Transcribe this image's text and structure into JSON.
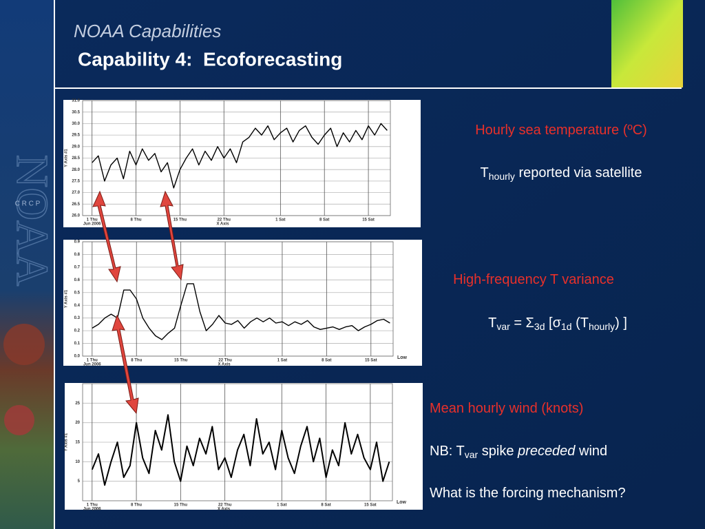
{
  "header": {
    "kicker": "NOAA Capabilities",
    "title": "Capability 4:  Ecoforecasting"
  },
  "sidebar": {
    "logo": "NOAA",
    "program": "C R C P"
  },
  "chart_data": [
    {
      "type": "line",
      "y_label": "Y Axis #1",
      "x_label": "X Axis",
      "x_sublabel": "Jun 2006",
      "xlim": [
        -1.5,
        47.5
      ],
      "xticks": [
        {
          "value": 0,
          "label": "1 Thu"
        },
        {
          "value": 7,
          "label": "8 Thu"
        },
        {
          "value": 14,
          "label": "15 Thu"
        },
        {
          "value": 21,
          "label": "22 Thu"
        },
        {
          "value": 30,
          "label": "1 Sat"
        },
        {
          "value": 37,
          "label": "8 Sat"
        },
        {
          "value": 44,
          "label": "15 Sat"
        }
      ],
      "ylim": [
        26,
        31
      ],
      "yticks": [
        {
          "value": 26,
          "label": "26.0"
        },
        {
          "value": 26.5,
          "label": "26.5"
        },
        {
          "value": 27,
          "label": "27.0"
        },
        {
          "value": 27.5,
          "label": "27.5"
        },
        {
          "value": 28,
          "label": "28.0"
        },
        {
          "value": 28.5,
          "label": "28.5"
        },
        {
          "value": 29,
          "label": "29.0"
        },
        {
          "value": 29.5,
          "label": "29.5"
        },
        {
          "value": 30,
          "label": "30.0"
        },
        {
          "value": 30.5,
          "label": "30.5"
        },
        {
          "value": 31,
          "label": "31.0"
        }
      ],
      "grid": true,
      "series": [
        {
          "color": "#000000",
          "x": [
            0,
            1,
            2,
            3,
            4,
            5,
            6,
            7,
            8,
            9,
            10,
            11,
            12,
            13,
            14,
            15,
            16,
            17,
            18,
            19,
            20,
            21,
            22,
            23,
            24,
            25,
            26,
            27,
            28,
            29,
            30,
            31,
            32,
            33,
            34,
            35,
            36,
            37,
            38,
            39,
            40,
            41,
            42,
            43,
            44,
            45,
            46,
            47
          ],
          "values": [
            28.3,
            28.6,
            27.5,
            28.2,
            28.5,
            27.6,
            28.8,
            28.2,
            28.9,
            28.4,
            28.7,
            27.9,
            28.3,
            27.2,
            28.0,
            28.5,
            28.9,
            28.2,
            28.8,
            28.4,
            29.0,
            28.5,
            28.9,
            28.3,
            29.2,
            29.4,
            29.8,
            29.5,
            29.9,
            29.3,
            29.6,
            29.8,
            29.2,
            29.7,
            29.9,
            29.4,
            29.1,
            29.5,
            29.8,
            29.0,
            29.6,
            29.2,
            29.7,
            29.3,
            29.9,
            29.5,
            30.0,
            29.7
          ]
        }
      ]
    },
    {
      "type": "line",
      "y_label": "Y Axis #1",
      "x_label": "X Axis",
      "x_sublabel": "Jun 2006",
      "corner_label": "Low",
      "xlim": [
        -1.5,
        47.5
      ],
      "xticks": [
        {
          "value": 0,
          "label": "1 Thu"
        },
        {
          "value": 7,
          "label": "8 Thu"
        },
        {
          "value": 14,
          "label": "15 Thu"
        },
        {
          "value": 21,
          "label": "22 Thu"
        },
        {
          "value": 30,
          "label": "1 Sat"
        },
        {
          "value": 37,
          "label": "8 Sat"
        },
        {
          "value": 44,
          "label": "15 Sat"
        }
      ],
      "ylim": [
        0,
        0.9
      ],
      "yticks": [
        {
          "value": 0,
          "label": "0.0"
        },
        0.1,
        0.2,
        0.3,
        0.4,
        0.5,
        0.6,
        0.7,
        0.8,
        0.9
      ],
      "grid": true,
      "series": [
        {
          "color": "#000000",
          "x": [
            0,
            1,
            2,
            3,
            4,
            5,
            6,
            7,
            8,
            9,
            10,
            11,
            12,
            13,
            14,
            15,
            16,
            17,
            18,
            19,
            20,
            21,
            22,
            23,
            24,
            25,
            26,
            27,
            28,
            29,
            30,
            31,
            32,
            33,
            34,
            35,
            36,
            37,
            38,
            39,
            40,
            41,
            42,
            43,
            44,
            45,
            46,
            47
          ],
          "values": [
            0.22,
            0.25,
            0.3,
            0.33,
            0.3,
            0.52,
            0.52,
            0.45,
            0.3,
            0.22,
            0.16,
            0.13,
            0.18,
            0.22,
            0.4,
            0.57,
            0.57,
            0.35,
            0.2,
            0.25,
            0.32,
            0.26,
            0.25,
            0.28,
            0.22,
            0.27,
            0.3,
            0.27,
            0.3,
            0.26,
            0.27,
            0.24,
            0.27,
            0.25,
            0.28,
            0.23,
            0.21,
            0.22,
            0.23,
            0.21,
            0.23,
            0.24,
            0.2,
            0.23,
            0.25,
            0.28,
            0.29,
            0.26
          ]
        }
      ]
    },
    {
      "type": "line",
      "y_label": "Y Axis #1",
      "x_label": "X Axis",
      "x_sublabel": "Jun 2006",
      "corner_label": "Low",
      "xlim": [
        -1.5,
        47.5
      ],
      "xticks": [
        {
          "value": 0,
          "label": "1 Thu"
        },
        {
          "value": 7,
          "label": "8 Thu"
        },
        {
          "value": 14,
          "label": "15 Thu"
        },
        {
          "value": 21,
          "label": "22 Thu"
        },
        {
          "value": 30,
          "label": "1 Sat"
        },
        {
          "value": 37,
          "label": "8 Sat"
        },
        {
          "value": 44,
          "label": "15 Sat"
        }
      ],
      "ylim": [
        0,
        30
      ],
      "yticks": [
        5,
        10,
        15,
        20,
        25
      ],
      "grid": true,
      "series": [
        {
          "color": "#000000",
          "x": [
            0,
            1,
            2,
            3,
            4,
            5,
            6,
            7,
            8,
            9,
            10,
            11,
            12,
            13,
            14,
            15,
            16,
            17,
            18,
            19,
            20,
            21,
            22,
            23,
            24,
            25,
            26,
            27,
            28,
            29,
            30,
            31,
            32,
            33,
            34,
            35,
            36,
            37,
            38,
            39,
            40,
            41,
            42,
            43,
            44,
            45,
            46,
            47
          ],
          "values": [
            8,
            12,
            4,
            10,
            15,
            6,
            9,
            20,
            11,
            7,
            18,
            13,
            22,
            10,
            5,
            14,
            9,
            16,
            12,
            19,
            8,
            11,
            6,
            13,
            17,
            9,
            21,
            12,
            15,
            8,
            18,
            11,
            7,
            14,
            19,
            10,
            16,
            6,
            13,
            9,
            20,
            12,
            17,
            11,
            8,
            15,
            5,
            10
          ]
        }
      ]
    }
  ],
  "notes": [
    {
      "color": "#e8302a",
      "segments": [
        {
          "text": "Hourly sea temperature (ºC)"
        }
      ]
    },
    {
      "color": "#ffffff",
      "segments": [
        {
          "text": "T"
        },
        {
          "text": "hourly",
          "sub": true
        },
        {
          "text": " reported via satellite"
        }
      ]
    },
    {
      "color": "#e8302a",
      "segments": [
        {
          "text": "High-frequency T variance"
        }
      ]
    },
    {
      "color": "#ffffff",
      "segments": [
        {
          "text": "T"
        },
        {
          "text": "var",
          "sub": true
        },
        {
          "text": " = Σ"
        },
        {
          "text": "3d",
          "sub": true
        },
        {
          "text": " [σ"
        },
        {
          "text": "1d",
          "sub": true
        },
        {
          "text": " (T"
        },
        {
          "text": "hourly",
          "sub": true
        },
        {
          "text": ") ]"
        }
      ]
    },
    {
      "color": "#e8302a",
      "segments": [
        {
          "text": "Mean hourly wind (knots)"
        }
      ]
    },
    {
      "color": "#ffffff",
      "segments": [
        {
          "text": "NB: T"
        },
        {
          "text": "var",
          "sub": true
        },
        {
          "text": " spike "
        },
        {
          "text": "preceded",
          "italic": true
        },
        {
          "text": " wind"
        }
      ]
    },
    {
      "color": "#ffffff",
      "segments": [
        {
          "text": "What is the forcing mechanism?"
        }
      ]
    }
  ]
}
